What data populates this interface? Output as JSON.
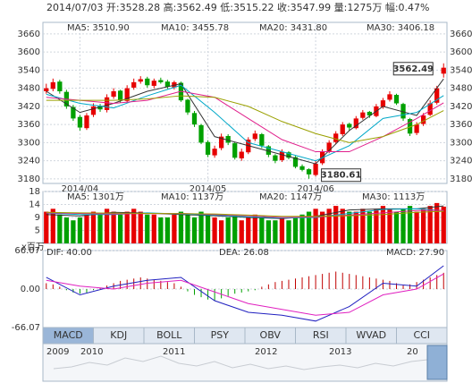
{
  "header": "2014/07/03 开:3528.28 高:3562.49 低:3515.22 收:3547.99 量:1275万 幅:0.47%",
  "chart_data": [
    {
      "type": "candlestick",
      "up_color": "#e60000",
      "down_color": "#00a000",
      "grid": true,
      "open": [
        3470,
        3478,
        3502,
        3468,
        3418,
        3385,
        3348,
        3392,
        3422,
        3408,
        3452,
        3472,
        3438,
        3482,
        3502,
        3512,
        3488,
        3507,
        3502,
        3483,
        3498,
        3442,
        3398,
        3358,
        3302,
        3258,
        3282,
        3322,
        3298,
        3248,
        3268,
        3312,
        3328,
        3288,
        3258,
        3242,
        3268,
        3252,
        3222,
        3212,
        3193,
        3232,
        3272,
        3302,
        3328,
        3362,
        3348,
        3382,
        3402,
        3388,
        3418,
        3442,
        3458,
        3428,
        3378,
        3332,
        3362,
        3392,
        3432,
        3528.28
      ],
      "high": [
        3495,
        3512,
        3508,
        3475,
        3425,
        3392,
        3398,
        3430,
        3428,
        3460,
        3480,
        3475,
        3490,
        3512,
        3520,
        3518,
        3512,
        3515,
        3508,
        3505,
        3502,
        3445,
        3405,
        3362,
        3308,
        3290,
        3330,
        3328,
        3302,
        3280,
        3318,
        3340,
        3332,
        3292,
        3262,
        3278,
        3272,
        3256,
        3228,
        3215,
        3240,
        3278,
        3308,
        3338,
        3368,
        3366,
        3388,
        3408,
        3405,
        3428,
        3448,
        3470,
        3462,
        3432,
        3382,
        3368,
        3398,
        3440,
        3488,
        3562.49
      ],
      "low": [
        3462,
        3470,
        3462,
        3412,
        3372,
        3340,
        3342,
        3385,
        3402,
        3400,
        3445,
        3432,
        3430,
        3475,
        3495,
        3482,
        3480,
        3495,
        3478,
        3476,
        3435,
        3392,
        3352,
        3295,
        3252,
        3250,
        3275,
        3292,
        3244,
        3240,
        3262,
        3305,
        3282,
        3252,
        3232,
        3236,
        3245,
        3215,
        3205,
        3180.61,
        3188,
        3226,
        3265,
        3295,
        3322,
        3340,
        3344,
        3376,
        3382,
        3384,
        3412,
        3436,
        3425,
        3372,
        3322,
        3325,
        3355,
        3388,
        3426,
        3515.22
      ],
      "close": [
        3480,
        3500,
        3470,
        3420,
        3380,
        3350,
        3390,
        3420,
        3410,
        3450,
        3470,
        3440,
        3480,
        3500,
        3510,
        3490,
        3505,
        3500,
        3485,
        3500,
        3440,
        3400,
        3360,
        3300,
        3260,
        3280,
        3320,
        3300,
        3250,
        3270,
        3310,
        3330,
        3290,
        3260,
        3240,
        3270,
        3250,
        3220,
        3210,
        3195,
        3230,
        3270,
        3300,
        3330,
        3360,
        3350,
        3380,
        3400,
        3390,
        3420,
        3440,
        3460,
        3430,
        3380,
        3330,
        3360,
        3390,
        3430,
        3480,
        3547.99
      ],
      "series": [
        {
          "name": "MA5: 3510.90",
          "color": "#333333",
          "x": [
            0,
            5,
            10,
            15,
            20,
            25,
            30,
            35,
            40,
            45,
            50,
            55,
            59
          ],
          "values": [
            3470,
            3400,
            3430,
            3470,
            3495,
            3320,
            3290,
            3260,
            3230,
            3340,
            3420,
            3390,
            3510.9
          ]
        },
        {
          "name": "MA10: 3455.78",
          "color": "#00a8c8",
          "x": [
            0,
            5,
            10,
            15,
            20,
            25,
            30,
            35,
            40,
            45,
            50,
            55,
            59
          ],
          "values": [
            3460,
            3430,
            3415,
            3455,
            3490,
            3400,
            3300,
            3270,
            3240,
            3290,
            3380,
            3400,
            3455.78
          ]
        },
        {
          "name": "MA20: 3431.80",
          "color": "#e0208c",
          "x": [
            0,
            5,
            10,
            15,
            20,
            25,
            30,
            35,
            40,
            45,
            50,
            55,
            59
          ],
          "values": [
            3450,
            3440,
            3430,
            3440,
            3470,
            3450,
            3380,
            3310,
            3270,
            3270,
            3320,
            3380,
            3431.8
          ]
        },
        {
          "name": "MA30: 3406.18",
          "color": "#9aa000",
          "x": [
            0,
            5,
            10,
            15,
            20,
            25,
            30,
            35,
            40,
            45,
            50,
            55,
            59
          ],
          "values": [
            3440,
            3440,
            3440,
            3445,
            3455,
            3450,
            3420,
            3370,
            3330,
            3300,
            3320,
            3360,
            3406.18
          ]
        }
      ],
      "ylim": [
        3165,
        3698
      ],
      "yticks": [
        3180,
        3240,
        3300,
        3360,
        3420,
        3480,
        3540,
        3600,
        3660
      ],
      "xticks": [
        {
          "value": 5,
          "label": "2014/04"
        },
        {
          "value": 24,
          "label": "2014/05"
        },
        {
          "value": 40,
          "label": "2014/06"
        }
      ],
      "annotations": [
        {
          "value": 3562.49,
          "label": "3562.49"
        },
        {
          "value": 3180.61,
          "label": "3180.61"
        }
      ]
    },
    {
      "type": "bar",
      "unit_label": "x百万",
      "grid": true,
      "values": [
        11,
        12,
        10,
        9,
        8,
        9,
        10,
        11,
        10,
        12,
        11,
        10,
        11,
        12,
        11,
        10,
        10,
        9,
        9,
        10,
        11,
        10,
        9,
        11,
        10,
        9,
        8,
        9,
        10,
        8,
        9,
        10,
        9,
        8,
        8,
        9,
        8,
        9,
        10,
        11,
        12,
        11,
        12,
        13,
        12,
        11,
        11,
        12,
        11,
        12,
        13,
        12,
        11,
        12,
        13,
        11,
        12,
        13,
        14,
        12.75
      ],
      "series": [
        {
          "name": "MA5: 1301万",
          "color": "#333333",
          "x": [
            0,
            5,
            10,
            15,
            20,
            25,
            30,
            35,
            40,
            45,
            50,
            55,
            59
          ],
          "values": [
            10,
            9.5,
            10.8,
            10.5,
            10,
            9.6,
            9,
            8.6,
            9.4,
            11.6,
            12,
            12,
            13.01
          ]
        },
        {
          "name": "MA10: 1137万",
          "color": "#00a8c8",
          "x": [
            0,
            5,
            10,
            15,
            20,
            25,
            30,
            35,
            40,
            45,
            50,
            55,
            59
          ],
          "values": [
            10.5,
            10,
            10,
            10.6,
            10.2,
            9.8,
            9.2,
            8.8,
            9,
            10.4,
            11.8,
            12,
            11.37
          ]
        },
        {
          "name": "MA20: 1147万",
          "color": "#e0208c",
          "x": [
            0,
            5,
            10,
            15,
            20,
            25,
            30,
            35,
            40,
            45,
            50,
            55,
            59
          ],
          "values": [
            10.6,
            10.4,
            10.2,
            10.3,
            10.4,
            10,
            9.6,
            9,
            9.2,
            9.8,
            10.6,
            11.4,
            11.47
          ]
        },
        {
          "name": "MA30: 1113万",
          "color": "#9aa000",
          "x": [
            0,
            5,
            10,
            15,
            20,
            25,
            30,
            35,
            40,
            45,
            50,
            55,
            59
          ],
          "values": [
            10.8,
            10.6,
            10.5,
            10.4,
            10.3,
            10.2,
            9.8,
            9.4,
            9.4,
            9.6,
            10,
            10.8,
            11.13
          ]
        }
      ],
      "ylim": [
        0,
        18
      ],
      "yticks": [
        {
          "value": 4.5,
          "label": "5"
        },
        9,
        {
          "value": 13.5,
          "label": "14"
        },
        18
      ]
    },
    {
      "type": "macd",
      "name": "MACD: 27.90",
      "color": "#c00000",
      "neg_color": "#00a000",
      "grid": true,
      "values": [
        10,
        8,
        4,
        -2,
        -6,
        -8,
        -6,
        -2,
        2,
        6,
        10,
        14,
        16,
        18,
        20,
        18,
        16,
        14,
        12,
        10,
        4,
        -4,
        -10,
        -14,
        -18,
        -20,
        -16,
        -12,
        -8,
        -6,
        -4,
        -2,
        4,
        8,
        12,
        14,
        16,
        18,
        20,
        22,
        24,
        26,
        28,
        30,
        28,
        26,
        24,
        22,
        20,
        18,
        16,
        14,
        10,
        6,
        8,
        12,
        16,
        20,
        24,
        27.9
      ],
      "series": [
        {
          "name": "DIF: 40.00",
          "color": "#2020c0",
          "x": [
            0,
            5,
            10,
            15,
            20,
            25,
            30,
            35,
            40,
            45,
            50,
            55,
            59
          ],
          "values": [
            20,
            -10,
            5,
            15,
            20,
            -20,
            -40,
            -45,
            -55,
            -30,
            10,
            5,
            40
          ]
        },
        {
          "name": "DEA: 26.08",
          "color": "#e020c0",
          "x": [
            0,
            5,
            10,
            15,
            20,
            25,
            30,
            35,
            40,
            45,
            50,
            55,
            59
          ],
          "values": [
            15,
            5,
            0,
            10,
            15,
            -5,
            -25,
            -35,
            -45,
            -40,
            -10,
            0,
            26.08
          ]
        }
      ],
      "ylim": [
        -66.07,
        66.07
      ],
      "yticks": [
        66.07,
        {
          "value": 0,
          "label": "0.00"
        },
        -66.07
      ]
    }
  ],
  "tabs": [
    "MACD",
    "KDJ",
    "BOLL",
    "PSY",
    "OBV",
    "RSI",
    "WVAD",
    "CCI"
  ],
  "selected_tab": 0,
  "timeline": [
    "2009",
    "2010",
    "2011",
    "2012",
    "2013",
    "20"
  ]
}
